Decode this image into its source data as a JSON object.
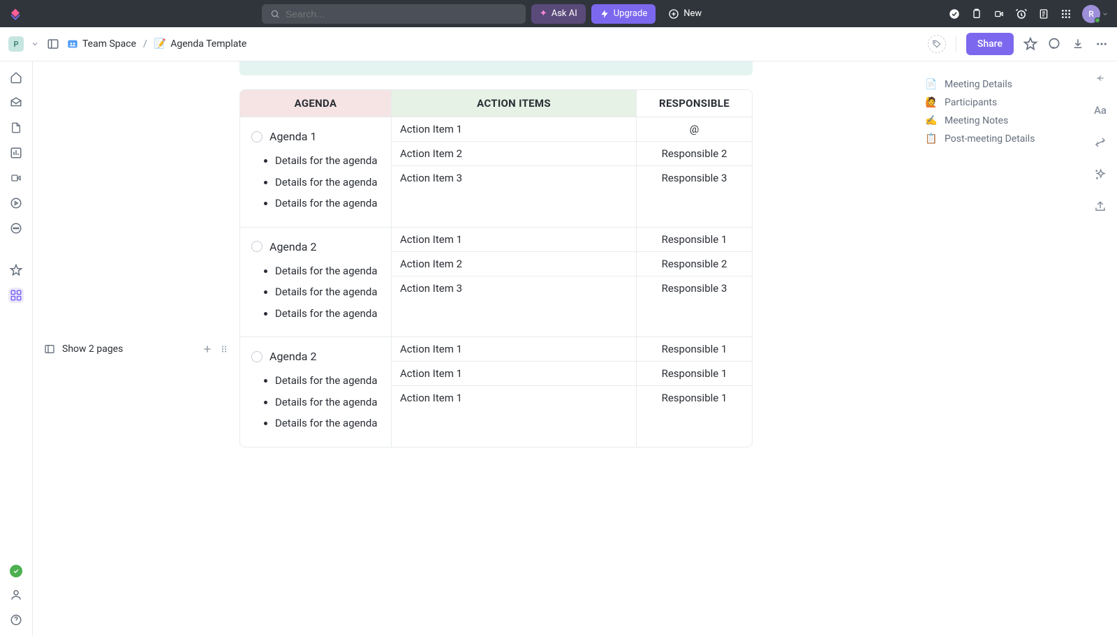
{
  "topbar": {
    "search_placeholder": "Search...",
    "ask_ai": "Ask AI",
    "upgrade": "Upgrade",
    "new": "New",
    "avatar_initial": "R"
  },
  "breadcrumb": {
    "space_chip": "P",
    "space": "Team Space",
    "doc": "Agenda Template",
    "doc_emoji": "📝",
    "share": "Share"
  },
  "pages": {
    "label": "Show 2 pages"
  },
  "table": {
    "headers": {
      "agenda": "AGENDA",
      "action": "ACTION ITEMS",
      "resp": "RESPONSIBLE"
    },
    "header_colors": {
      "agenda": "#f6e4e4",
      "action": "#e5f2e5",
      "resp": "#ffffff"
    },
    "rows": [
      {
        "agenda_title": "Agenda 1",
        "details": [
          "Details for the agen­da",
          "Details for the agen­da",
          "Details for the agen­da"
        ],
        "items": [
          {
            "action": "Action Item 1",
            "resp": "@"
          },
          {
            "action": "Action Item 2",
            "resp": "Responsible 2"
          },
          {
            "action": "Action Item 3",
            "resp": "Responsible 3"
          }
        ]
      },
      {
        "agenda_title": "Agenda 2",
        "details": [
          "Details for the agen­da",
          "Details for the agen­da",
          "Details for the agen­da"
        ],
        "items": [
          {
            "action": "Action Item 1",
            "resp": "Responsible 1"
          },
          {
            "action": "Action Item 2",
            "resp": "Responsible 2"
          },
          {
            "action": "Action Item 3",
            "resp": "Responsible 3"
          }
        ]
      },
      {
        "agenda_title": "Agenda 2",
        "details": [
          "Details for the agen­da",
          "Details for the agen­da",
          "Details for the agen­da"
        ],
        "items": [
          {
            "action": "Action Item 1",
            "resp": "Responsible 1"
          },
          {
            "action": "Action Item 1",
            "resp": "Responsible 1"
          },
          {
            "action": "Action Item 1",
            "resp": "Responsible 1"
          }
        ]
      }
    ]
  },
  "outline": [
    {
      "emoji": "📄",
      "label": "Meeting Details"
    },
    {
      "emoji": "🙋",
      "label": "Participants"
    },
    {
      "emoji": "✍️",
      "label": "Meeting Notes"
    },
    {
      "emoji": "📋",
      "label": "Post-meeting Details"
    }
  ],
  "colors": {
    "accent": "#7b68ee",
    "topbar_bg": "#30353c",
    "border": "#e8eaed"
  }
}
